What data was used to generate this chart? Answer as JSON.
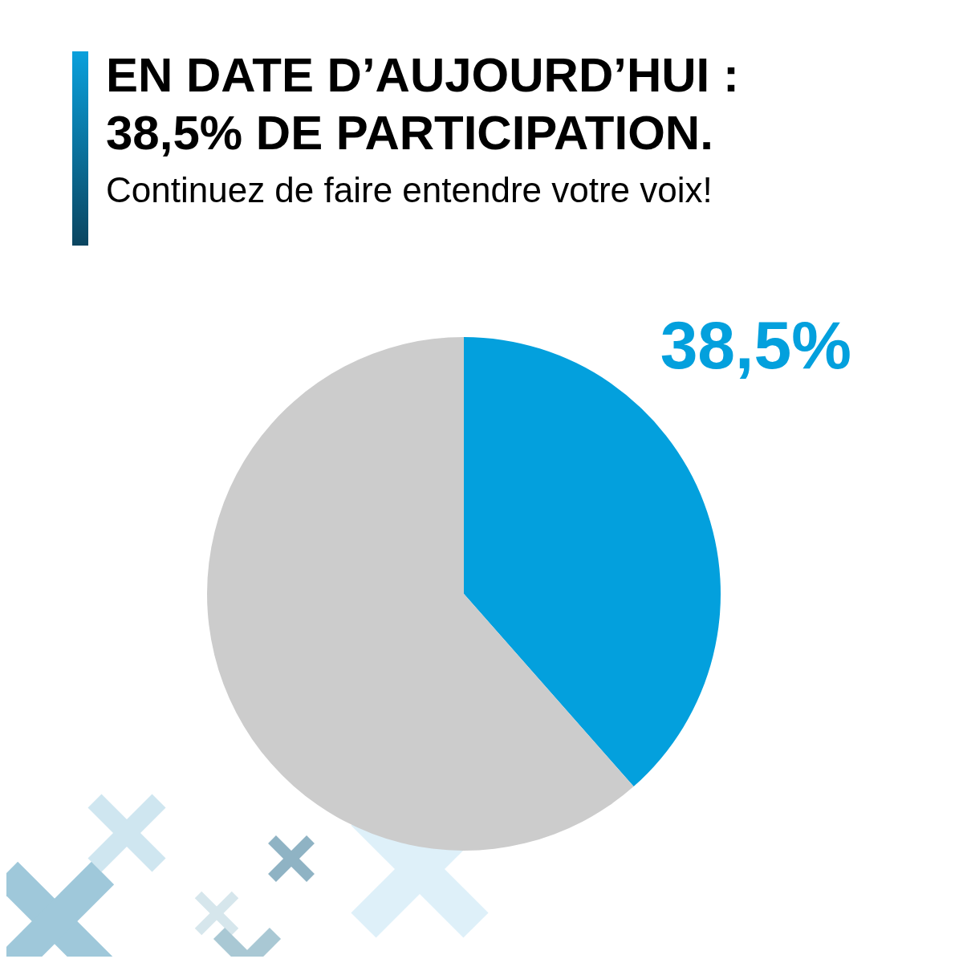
{
  "chart_data": {
    "type": "pie",
    "title": "EN DATE D’AUJOURD’HUI :\n38,5% DE PARTICIPATION.",
    "subtitle": "Continuez de faire entendre votre voix!",
    "categories": [
      null,
      null
    ],
    "values": [
      38.5,
      61.5
    ],
    "colors": [
      "#03a0dd",
      "#cccccc"
    ],
    "value_labels": [
      "38,5%",
      null
    ],
    "legend": false
  }
}
